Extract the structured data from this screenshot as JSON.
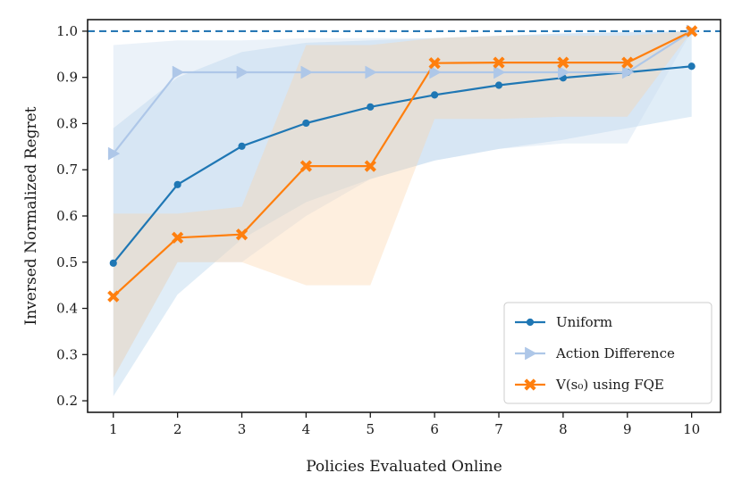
{
  "chart_data": {
    "type": "line",
    "xlabel": "Policies Evaluated Online",
    "ylabel": "Inversed Normalized Regret",
    "x": [
      1,
      2,
      3,
      4,
      5,
      6,
      7,
      8,
      9,
      10
    ],
    "xlim": [
      0.6,
      10.45
    ],
    "ylim": [
      0.175,
      1.025
    ],
    "yticks": [
      0.2,
      0.3,
      0.4,
      0.5,
      0.6,
      0.7,
      0.8,
      0.9,
      1.0
    ],
    "ytick_labels": [
      "0.2",
      "0.3",
      "0.4",
      "0.5",
      "0.6",
      "0.7",
      "0.8",
      "0.9",
      "1.0"
    ],
    "xtick_labels": [
      "1",
      "2",
      "3",
      "4",
      "5",
      "6",
      "7",
      "8",
      "9",
      "10"
    ],
    "grid": false,
    "reference_line": {
      "y": 1.0,
      "style": "dashed",
      "color": "#2878b5"
    },
    "series": [
      {
        "name": "Uniform",
        "color": "#1f77b4",
        "marker": "circle",
        "values": [
          0.498,
          0.668,
          0.751,
          0.801,
          0.836,
          0.862,
          0.883,
          0.899,
          0.911,
          0.924
        ],
        "band_lower": [
          0.21,
          0.43,
          0.55,
          0.63,
          0.68,
          0.72,
          0.745,
          0.765,
          0.79,
          0.815
        ],
        "band_upper": [
          0.79,
          0.9,
          0.955,
          0.975,
          0.98,
          0.985,
          0.99,
          0.995,
          0.998,
          1.0
        ],
        "band_color": "#a6cbe8"
      },
      {
        "name": "Action Difference",
        "color": "#aec7e8",
        "marker": "triangle-right",
        "values": [
          0.735,
          0.911,
          0.911,
          0.911,
          0.911,
          0.911,
          0.911,
          0.911,
          0.911,
          1.0
        ],
        "band_lower": [
          0.25,
          0.5,
          0.5,
          0.6,
          0.68,
          0.72,
          0.745,
          0.757,
          0.757,
          1.0
        ],
        "band_upper": [
          0.97,
          0.98,
          0.98,
          0.985,
          0.985,
          0.985,
          0.99,
          0.995,
          0.997,
          1.0
        ],
        "band_color": "#c6dbef"
      },
      {
        "name": "$V(s_0)$ using FQE",
        "legend_label": "V(s₀) using FQE",
        "color": "#ff7f0e",
        "marker": "x-filled",
        "values": [
          0.426,
          0.553,
          0.56,
          0.708,
          0.708,
          0.931,
          0.932,
          0.932,
          0.932,
          1.0
        ],
        "band_lower": [
          0.25,
          0.5,
          0.5,
          0.45,
          0.45,
          0.81,
          0.81,
          0.815,
          0.815,
          1.0
        ],
        "band_upper": [
          0.605,
          0.605,
          0.62,
          0.97,
          0.97,
          0.985,
          0.99,
          0.99,
          0.99,
          1.0
        ],
        "band_color": "#fdd0a2"
      }
    ],
    "legend": {
      "position": "lower-right"
    }
  }
}
